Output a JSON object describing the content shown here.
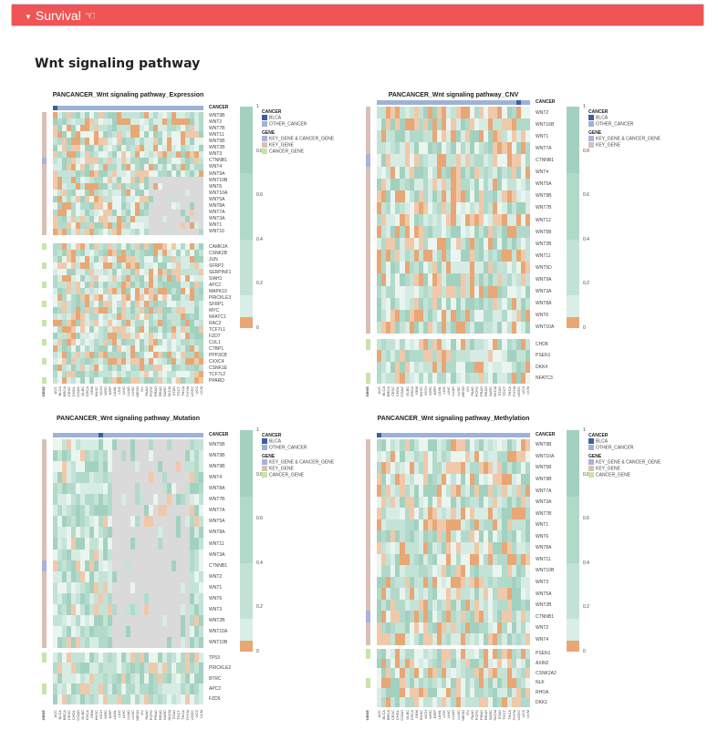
{
  "header": {
    "label": "Survival",
    "icon": "hand-pointer-icon",
    "color": "#f05454"
  },
  "section_title": "Wnt signaling pathway",
  "cancer_types": [
    "ACC",
    "BLCA",
    "BRCA",
    "CESC",
    "CHOL",
    "COAD",
    "DLBC",
    "ESCA",
    "GBM",
    "HNSC",
    "KICH",
    "KIRC",
    "KIRP",
    "LAML",
    "LGG",
    "LIHC",
    "LUAD",
    "LUSC",
    "MESO",
    "OV",
    "PAAD",
    "PCPG",
    "PRAD",
    "READ",
    "SARC",
    "SKCM",
    "STAD",
    "TGCT",
    "THCA",
    "THYM",
    "UCEC",
    "UCS",
    "UVM"
  ],
  "gene_axis_label": "GENE",
  "cancer_axis_label": "CANCER",
  "colorscale_ticks": [
    "1",
    "0.8",
    "0.6",
    "0.4",
    "0.2",
    "0"
  ],
  "legend": {
    "cancer_title": "CANCER",
    "cancer_items": [
      "BLCA",
      "OTHER_CANCER"
    ],
    "gene_title": "GENE",
    "gene_items": [
      "KEY_GENE & CANCER_GENE",
      "KEY_GENE",
      "CANCER_GENE"
    ]
  },
  "colors": {
    "blca": "#3b5fa0",
    "other_cancer": "#9db3d6",
    "key_and_cancer": "#aab0e0",
    "key_gene": "#d9c0b4",
    "cancer_gene": "#c9e3a8",
    "high": "#a3d1c0",
    "low": "#e8a775",
    "na": "#dadada"
  },
  "panels": [
    {
      "title": "PANCANCER_Wnt signaling pathway_Expression",
      "groups": [
        [
          "WNT9B",
          "WNT2",
          "WNT7B",
          "WNT11",
          "WNT5B",
          "WNT2B",
          "WNT3",
          "CTNNB1",
          "WNT4",
          "WNT9A",
          "WNT10B",
          "WNT6",
          "WNT10A",
          "WNT5A",
          "WNT8A",
          "WNT7A",
          "WNT3A",
          "WNT1",
          "WNT16"
        ],
        [
          "CAMK2A",
          "CSNK2B",
          "JUN",
          "SFRP2",
          "SERPINF1",
          "SIAH1",
          "APC2",
          "MAPK10",
          "PRICKLE3",
          "SFRP1",
          "MYC",
          "NFATC1",
          "RAC2",
          "TCF7L1",
          "FZD7",
          "CUL1",
          "CTBP1",
          "PPP3CB",
          "CXXC4",
          "CSNK1E",
          "TCF7L2",
          "PPARD"
        ]
      ]
    },
    {
      "title": "PANCANCER_Wnt signaling pathway_CNV",
      "groups": [
        [
          "WNT2",
          "WNT16B",
          "WNT1",
          "WNT7A",
          "CTNNB1",
          "WNT4",
          "WNT5A",
          "WNT9B",
          "WNT7B",
          "WNT12",
          "WNT5B",
          "WNT2B",
          "WNT11",
          "WNT5D",
          "WNT9A",
          "WNT3A",
          "WNT8A",
          "WNT6",
          "WNT10A"
        ],
        [
          "CHD8",
          "PSEN1",
          "DKK4",
          "NFATC3"
        ]
      ],
      "legend_gene_items": [
        "KEY_GENE & CANCER_GENE",
        "KEY_GENE"
      ]
    },
    {
      "title": "PANCANCER_Wnt signaling pathway_Mutation",
      "groups": [
        [
          "WNT5B",
          "WNT9B",
          "WNT9B",
          "WNT4",
          "WNT8A",
          "WNT7B",
          "WNT7A",
          "WNT5A",
          "WNT8A",
          "WNT11",
          "WNT3A",
          "CTNNB1",
          "WNT2",
          "WNT1",
          "WNT6",
          "WNT3",
          "WNT2B",
          "WNT10A",
          "WNT10B"
        ],
        [
          "TP53",
          "PRICKLE2",
          "BTRC",
          "APC2",
          "FZD5"
        ]
      ]
    },
    {
      "title": "PANCANCER_Wnt signaling pathway_Methylation",
      "groups": [
        [
          "WNT9B",
          "WNT10A",
          "WNT5B",
          "WNT9B",
          "WNT7A",
          "WNT3A",
          "WNT7B",
          "WNT1",
          "WNT6",
          "WNT8A",
          "WNT11",
          "WNT10B",
          "WNT3",
          "WNT5A",
          "WNT2B",
          "CTNNB1",
          "WNT2",
          "WNT4"
        ],
        [
          "PSEN1",
          "AXIN2",
          "CSNK2A2",
          "NLK",
          "RHOA",
          "DKK1"
        ]
      ]
    }
  ]
}
